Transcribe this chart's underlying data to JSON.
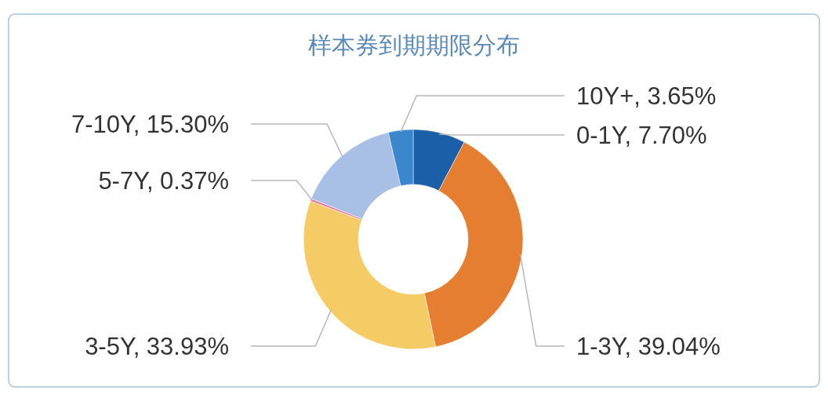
{
  "chart_data": {
    "type": "donut",
    "title": "样本券到期期限分布",
    "categories": [
      "0-1Y",
      "1-3Y",
      "3-5Y",
      "5-7Y",
      "7-10Y",
      "10Y+"
    ],
    "values": [
      7.7,
      39.04,
      33.93,
      0.37,
      15.3,
      3.65
    ],
    "colors": [
      "#1a5fa8",
      "#e57e30",
      "#f5cb66",
      "#e87a9c",
      "#a9c0e6",
      "#3a87cc"
    ],
    "value_labels": [
      ", 7.70%",
      ", 39.04%",
      ", 33.93%",
      ", 0.37%",
      ", 15.30%",
      ", 3.65%"
    ]
  }
}
